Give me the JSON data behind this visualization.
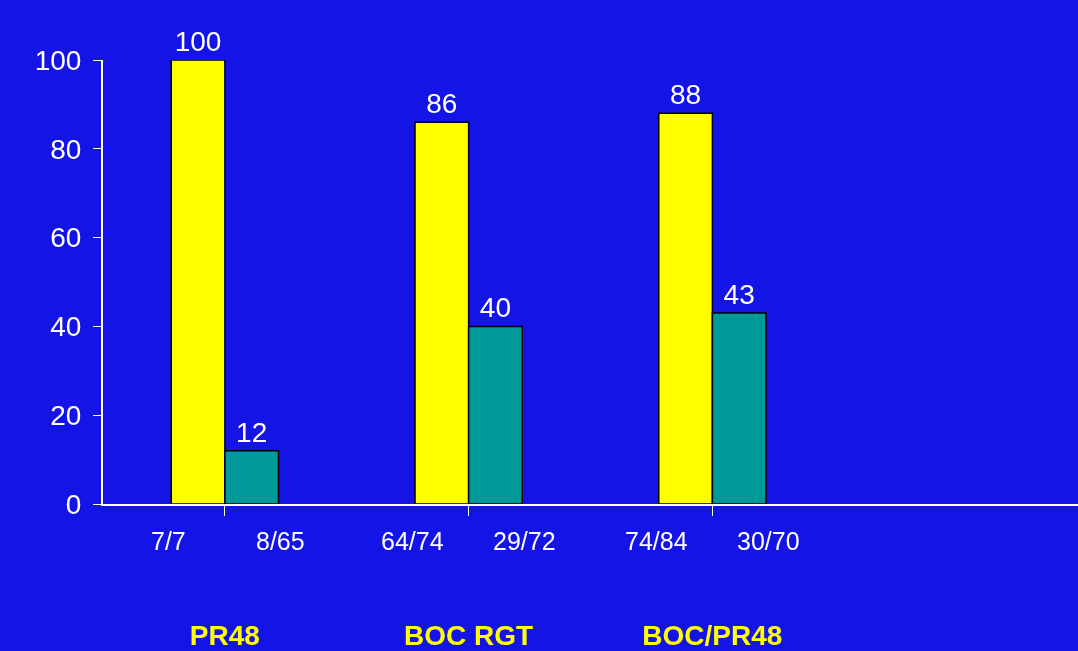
{
  "chart_data": {
    "type": "bar",
    "categories": [
      "PR48",
      "BOC RGT",
      "BOC/PR48",
      null
    ],
    "series": [
      {
        "color": "#ffff00",
        "values": [
          100,
          86,
          88,
          null
        ]
      },
      {
        "color": "#009999",
        "values": [
          12,
          40,
          43,
          null
        ]
      }
    ],
    "ylim": [
      0,
      100
    ],
    "yticks": [
      0,
      20,
      40,
      60,
      80,
      100
    ],
    "data_labels": true,
    "grid": false,
    "legend": false,
    "annotations": [
      "7/7",
      "8/65",
      "64/74",
      "29/72",
      "74/84",
      "30/70"
    ]
  }
}
